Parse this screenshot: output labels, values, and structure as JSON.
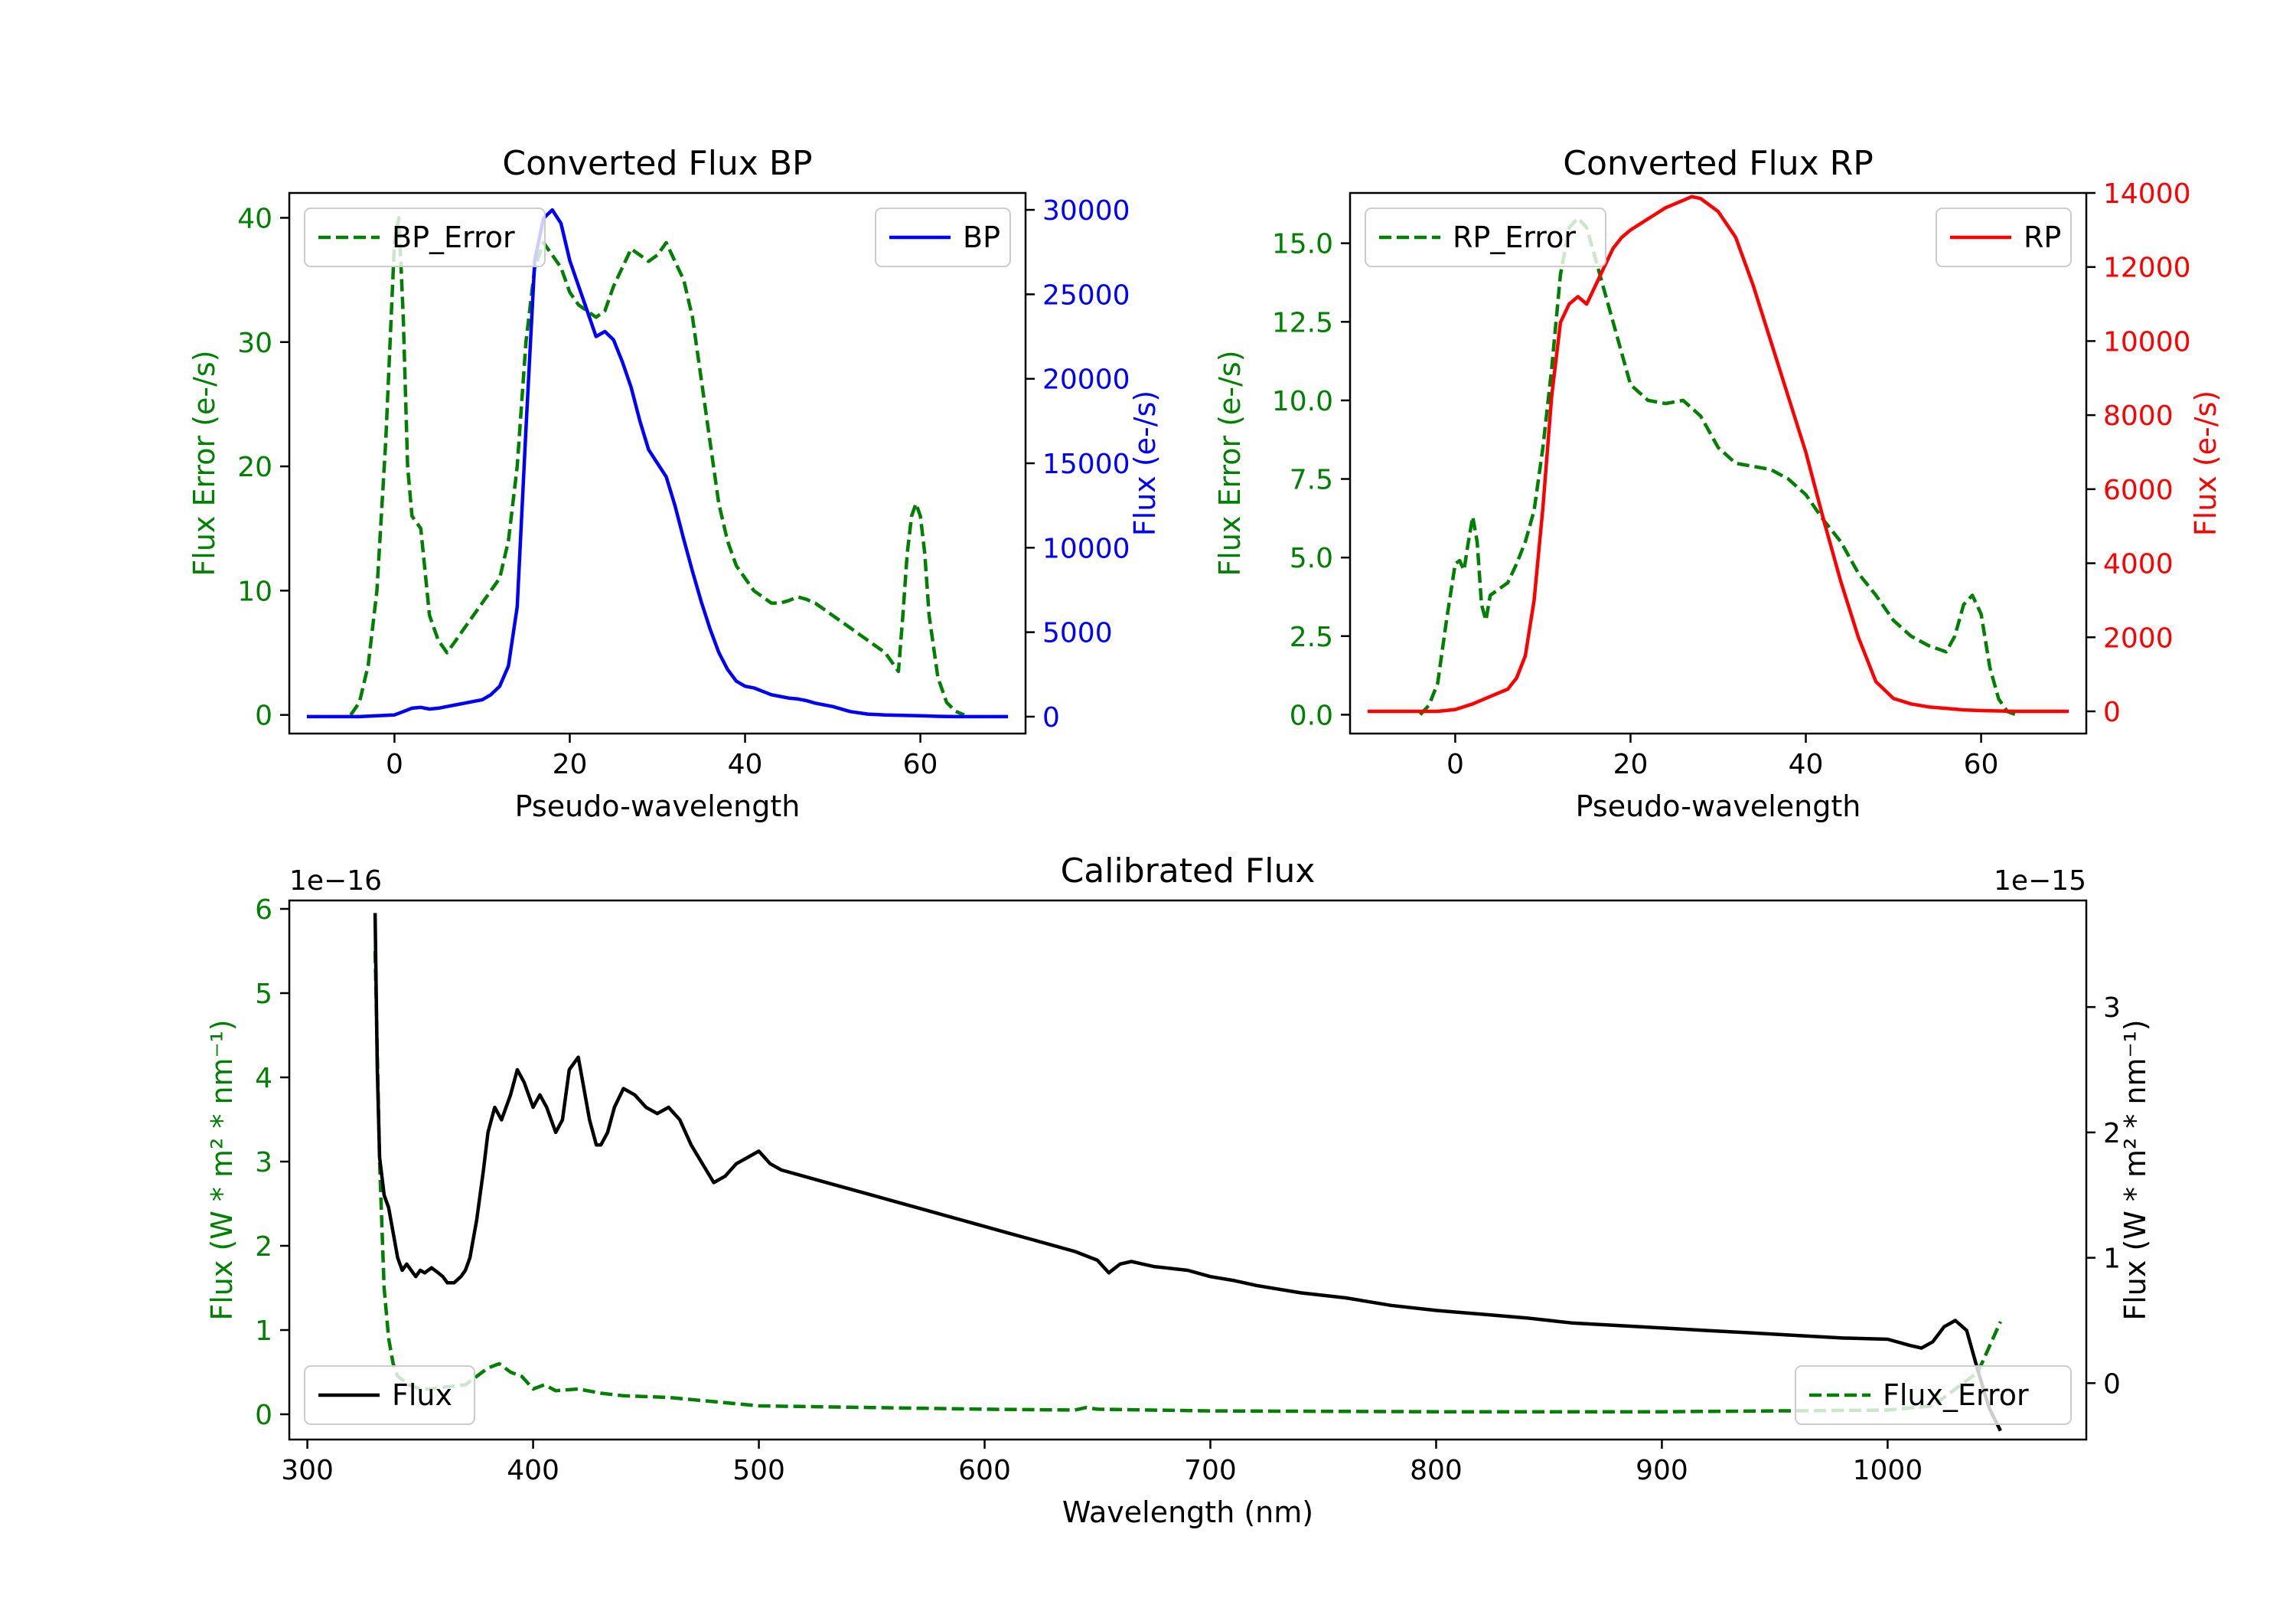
{
  "chart_data": [
    {
      "id": "bp",
      "type": "line",
      "title": "Converted Flux BP",
      "xlabel": "Pseudo-wavelength",
      "xlim": [
        -12,
        72
      ],
      "xticks": [
        0,
        20,
        40,
        60
      ],
      "left_axis": {
        "label": "Flux Error (e-/s)",
        "color": "#008000",
        "ylim": [
          -1.5,
          42.0
        ],
        "ticks": [
          0,
          10,
          20,
          30,
          40
        ],
        "tick_labels": [
          "0",
          "10",
          "20",
          "30",
          "40"
        ]
      },
      "right_axis": {
        "label": "Flux (e-/s)",
        "color": "#0000ff",
        "ylim": [
          -1000,
          31000
        ],
        "ticks": [
          0,
          5000,
          10000,
          15000,
          20000,
          25000,
          30000
        ],
        "tick_labels": [
          "0",
          "5000",
          "10000",
          "15000",
          "20000",
          "25000",
          "30000"
        ]
      },
      "legends": [
        {
          "label": "BP_Error",
          "position": "upper left",
          "style": "dashed",
          "color": "#008000"
        },
        {
          "label": "BP",
          "position": "upper right",
          "style": "solid",
          "color": "#0000ff"
        }
      ],
      "series": [
        {
          "name": "BP_Error",
          "axis": "left",
          "color": "#008000",
          "style": "dashed",
          "x": [
            -5,
            -4,
            -3,
            -2,
            -1,
            0,
            0.5,
            1,
            1.5,
            2,
            3,
            4,
            5,
            6,
            7,
            8,
            9,
            10,
            11,
            12,
            13,
            14,
            15,
            16,
            17,
            18,
            19,
            20,
            21,
            22,
            23,
            24,
            25,
            26,
            27,
            28,
            29,
            30,
            31,
            32,
            33,
            34,
            35,
            36,
            37,
            38,
            39,
            40,
            41,
            42,
            43,
            44,
            45,
            46,
            47,
            48,
            49,
            50,
            51,
            52,
            53,
            54,
            55,
            56,
            57,
            57.5,
            58,
            58.5,
            59,
            59.5,
            60,
            60.5,
            61,
            62,
            63,
            64,
            65
          ],
          "y": [
            0,
            1,
            4,
            10,
            22,
            38,
            40,
            32,
            20,
            16,
            15,
            8,
            6,
            5,
            6,
            7,
            8,
            9,
            10,
            11,
            14,
            20,
            30,
            36,
            38,
            37,
            36,
            34,
            33,
            32.5,
            32,
            32.5,
            34.5,
            36,
            37.5,
            37,
            36.5,
            37,
            38,
            36.5,
            35,
            32,
            27,
            22,
            17,
            14,
            12,
            11,
            10,
            9.5,
            9,
            9,
            9.2,
            9.5,
            9.3,
            9,
            8.5,
            8,
            7.5,
            7,
            6.5,
            6,
            5.5,
            5,
            4,
            3.5,
            8,
            13,
            16,
            17,
            16,
            13,
            8,
            3,
            1,
            0.3,
            0
          ]
        },
        {
          "name": "BP",
          "axis": "right",
          "color": "#0000ff",
          "style": "solid",
          "x": [
            -10,
            -8,
            -6,
            -4,
            -2,
            0,
            1,
            2,
            3,
            4,
            5,
            6,
            7,
            8,
            9,
            10,
            11,
            12,
            13,
            14,
            15,
            16,
            17,
            18,
            19,
            20,
            21,
            22,
            23,
            24,
            25,
            26,
            27,
            28,
            29,
            30,
            31,
            32,
            33,
            34,
            35,
            36,
            37,
            38,
            39,
            40,
            41,
            42,
            43,
            44,
            45,
            46,
            47,
            48,
            50,
            52,
            54,
            56,
            58,
            60,
            62,
            64,
            66,
            68,
            70
          ],
          "y": [
            0,
            0,
            0,
            0,
            50,
            100,
            300,
            500,
            550,
            450,
            500,
            600,
            700,
            800,
            900,
            1000,
            1300,
            1800,
            3000,
            6500,
            17000,
            27000,
            29500,
            30000,
            29200,
            27000,
            25500,
            24000,
            22500,
            22800,
            22300,
            21000,
            19500,
            17500,
            15800,
            15000,
            14200,
            12500,
            10500,
            8600,
            6800,
            5200,
            3800,
            2800,
            2100,
            1800,
            1700,
            1500,
            1300,
            1200,
            1100,
            1050,
            950,
            800,
            600,
            300,
            150,
            100,
            80,
            50,
            20,
            0,
            0,
            0,
            0
          ]
        }
      ]
    },
    {
      "id": "rp",
      "type": "line",
      "title": "Converted Flux RP",
      "xlabel": "Pseudo-wavelength",
      "xlim": [
        -12,
        72
      ],
      "xticks": [
        0,
        20,
        40,
        60
      ],
      "left_axis": {
        "label": "Flux Error (e-/s)",
        "color": "#008000",
        "ylim": [
          -0.6,
          16.6
        ],
        "ticks": [
          0.0,
          2.5,
          5.0,
          7.5,
          10.0,
          12.5,
          15.0
        ],
        "tick_labels": [
          "0.0",
          "2.5",
          "5.0",
          "7.5",
          "10.0",
          "12.5",
          "15.0"
        ]
      },
      "right_axis": {
        "label": "Flux (e-/s)",
        "color": "#ff0000",
        "ylim": [
          -600,
          14000
        ],
        "ticks": [
          0,
          2000,
          4000,
          6000,
          8000,
          10000,
          12000,
          14000
        ],
        "tick_labels": [
          "0",
          "2000",
          "4000",
          "6000",
          "8000",
          "10000",
          "12000",
          "14000"
        ]
      },
      "legends": [
        {
          "label": "RP_Error",
          "position": "upper left",
          "style": "dashed",
          "color": "#008000"
        },
        {
          "label": "RP",
          "position": "upper right",
          "style": "solid",
          "color": "#ff0000"
        }
      ],
      "series": [
        {
          "name": "RP_Error",
          "axis": "left",
          "color": "#008000",
          "style": "dashed",
          "x": [
            -4,
            -3,
            -2,
            -1,
            0,
            0.5,
            1,
            1.5,
            2,
            2.5,
            3,
            3.5,
            4,
            5,
            6,
            7,
            8,
            9,
            10,
            11,
            12,
            13,
            14,
            15,
            16,
            17,
            18,
            19,
            20,
            22,
            24,
            26,
            28,
            30,
            32,
            34,
            36,
            38,
            40,
            42,
            44,
            46,
            48,
            50,
            52,
            54,
            56,
            57,
            58,
            59,
            60,
            61,
            62,
            63,
            64
          ],
          "y": [
            0,
            0.3,
            1,
            3,
            4.8,
            4.9,
            4.6,
            5.5,
            6.3,
            5.5,
            3.5,
            3,
            3.8,
            4,
            4.2,
            4.8,
            5.5,
            6.5,
            8.5,
            11,
            14,
            15.5,
            15.8,
            15.5,
            14.5,
            13.5,
            12.5,
            11.5,
            10.5,
            10,
            9.9,
            10,
            9.5,
            8.5,
            8,
            7.9,
            7.8,
            7.5,
            7,
            6.2,
            5.5,
            4.5,
            3.8,
            3,
            2.5,
            2.2,
            2.0,
            2.5,
            3.5,
            3.8,
            3.2,
            1.5,
            0.5,
            0.1,
            0
          ]
        },
        {
          "name": "RP",
          "axis": "right",
          "color": "#ff0000",
          "style": "solid",
          "x": [
            -10,
            -8,
            -6,
            -4,
            -2,
            0,
            2,
            4,
            6,
            7,
            8,
            9,
            10,
            11,
            12,
            13,
            14,
            15,
            16,
            17,
            18,
            19,
            20,
            22,
            24,
            26,
            27,
            28,
            30,
            32,
            34,
            36,
            38,
            40,
            42,
            44,
            46,
            48,
            50,
            52,
            54,
            56,
            58,
            60,
            62,
            64,
            66,
            68,
            70
          ],
          "y": [
            0,
            0,
            0,
            0,
            0,
            50,
            200,
            400,
            600,
            900,
            1500,
            3000,
            5500,
            8500,
            10500,
            11000,
            11200,
            11000,
            11500,
            12000,
            12500,
            12800,
            13000,
            13300,
            13600,
            13800,
            13900,
            13850,
            13500,
            12800,
            11500,
            10000,
            8500,
            7000,
            5200,
            3500,
            2000,
            800,
            350,
            200,
            120,
            80,
            40,
            20,
            10,
            0,
            0,
            0,
            0
          ]
        }
      ]
    },
    {
      "id": "cal",
      "type": "line",
      "title": "Calibrated Flux",
      "xlabel": "Wavelength (nm)",
      "xlim": [
        292,
        1088
      ],
      "xticks": [
        300,
        400,
        500,
        600,
        700,
        800,
        900,
        1000
      ],
      "left_axis": {
        "label": "Flux (W * m² * nm⁻¹)",
        "color": "#008000",
        "ylim": [
          -0.3,
          6.1
        ],
        "ticks": [
          0,
          1,
          2,
          3,
          4,
          5,
          6
        ],
        "tick_labels": [
          "0",
          "1",
          "2",
          "3",
          "4",
          "5",
          "6"
        ],
        "offset_text": "1e−16"
      },
      "right_axis": {
        "label": "Flux (W * m² * nm⁻¹)",
        "color": "#000000",
        "ylim": [
          -0.45,
          3.85
        ],
        "ticks": [
          0,
          1,
          2,
          3
        ],
        "tick_labels": [
          "0",
          "1",
          "2",
          "3"
        ],
        "offset_text": "1e−15"
      },
      "legends": [
        {
          "label": "Flux",
          "position": "lower left",
          "style": "solid",
          "color": "#000000"
        },
        {
          "label": "Flux_Error",
          "position": "lower right",
          "style": "dashed",
          "color": "#008000"
        }
      ],
      "series": [
        {
          "name": "Flux_Error",
          "axis": "left",
          "color": "#008000",
          "style": "dashed",
          "x": [
            330,
            332,
            334,
            336,
            338,
            340,
            345,
            350,
            355,
            360,
            370,
            380,
            385,
            390,
            395,
            400,
            405,
            410,
            420,
            430,
            440,
            460,
            480,
            500,
            550,
            600,
            640,
            645,
            650,
            700,
            800,
            900,
            1000,
            1020,
            1040,
            1050
          ],
          "y": [
            5.5,
            3,
            1.5,
            0.9,
            0.6,
            0.45,
            0.35,
            0.3,
            0.3,
            0.32,
            0.35,
            0.55,
            0.6,
            0.5,
            0.45,
            0.3,
            0.35,
            0.28,
            0.3,
            0.25,
            0.22,
            0.2,
            0.15,
            0.1,
            0.08,
            0.06,
            0.05,
            0.08,
            0.06,
            0.04,
            0.03,
            0.03,
            0.05,
            0.1,
            0.5,
            1.1
          ]
        },
        {
          "name": "Flux",
          "axis": "right",
          "color": "#000000",
          "style": "solid",
          "x": [
            330,
            331,
            332,
            334,
            336,
            338,
            340,
            342,
            344,
            346,
            348,
            350,
            352,
            355,
            358,
            360,
            362,
            365,
            368,
            370,
            372,
            375,
            378,
            380,
            383,
            386,
            390,
            393,
            396,
            400,
            403,
            406,
            410,
            413,
            416,
            420,
            422,
            425,
            428,
            430,
            433,
            436,
            440,
            445,
            450,
            455,
            460,
            465,
            470,
            475,
            480,
            485,
            490,
            495,
            500,
            505,
            510,
            520,
            530,
            540,
            550,
            560,
            570,
            580,
            590,
            600,
            610,
            620,
            630,
            640,
            650,
            655,
            660,
            665,
            670,
            675,
            680,
            690,
            700,
            710,
            720,
            740,
            760,
            780,
            800,
            820,
            840,
            860,
            880,
            900,
            920,
            940,
            960,
            980,
            1000,
            1010,
            1015,
            1020,
            1025,
            1030,
            1035,
            1040,
            1045,
            1050
          ],
          "y": [
            3.75,
            2.5,
            1.8,
            1.5,
            1.4,
            1.2,
            1.0,
            0.9,
            0.95,
            0.9,
            0.85,
            0.9,
            0.88,
            0.92,
            0.88,
            0.85,
            0.8,
            0.8,
            0.85,
            0.9,
            1.0,
            1.3,
            1.7,
            2.0,
            2.2,
            2.1,
            2.3,
            2.5,
            2.4,
            2.2,
            2.3,
            2.2,
            2.0,
            2.1,
            2.5,
            2.6,
            2.4,
            2.1,
            1.9,
            1.9,
            2.0,
            2.2,
            2.35,
            2.3,
            2.2,
            2.15,
            2.2,
            2.1,
            1.9,
            1.75,
            1.6,
            1.65,
            1.75,
            1.8,
            1.85,
            1.75,
            1.7,
            1.65,
            1.6,
            1.55,
            1.5,
            1.45,
            1.4,
            1.35,
            1.3,
            1.25,
            1.2,
            1.15,
            1.1,
            1.05,
            0.98,
            0.88,
            0.95,
            0.97,
            0.95,
            0.93,
            0.92,
            0.9,
            0.85,
            0.82,
            0.78,
            0.72,
            0.68,
            0.62,
            0.58,
            0.55,
            0.52,
            0.48,
            0.46,
            0.44,
            0.42,
            0.4,
            0.38,
            0.36,
            0.35,
            0.3,
            0.28,
            0.33,
            0.45,
            0.5,
            0.42,
            0.1,
            -0.2,
            -0.38
          ]
        }
      ]
    }
  ]
}
